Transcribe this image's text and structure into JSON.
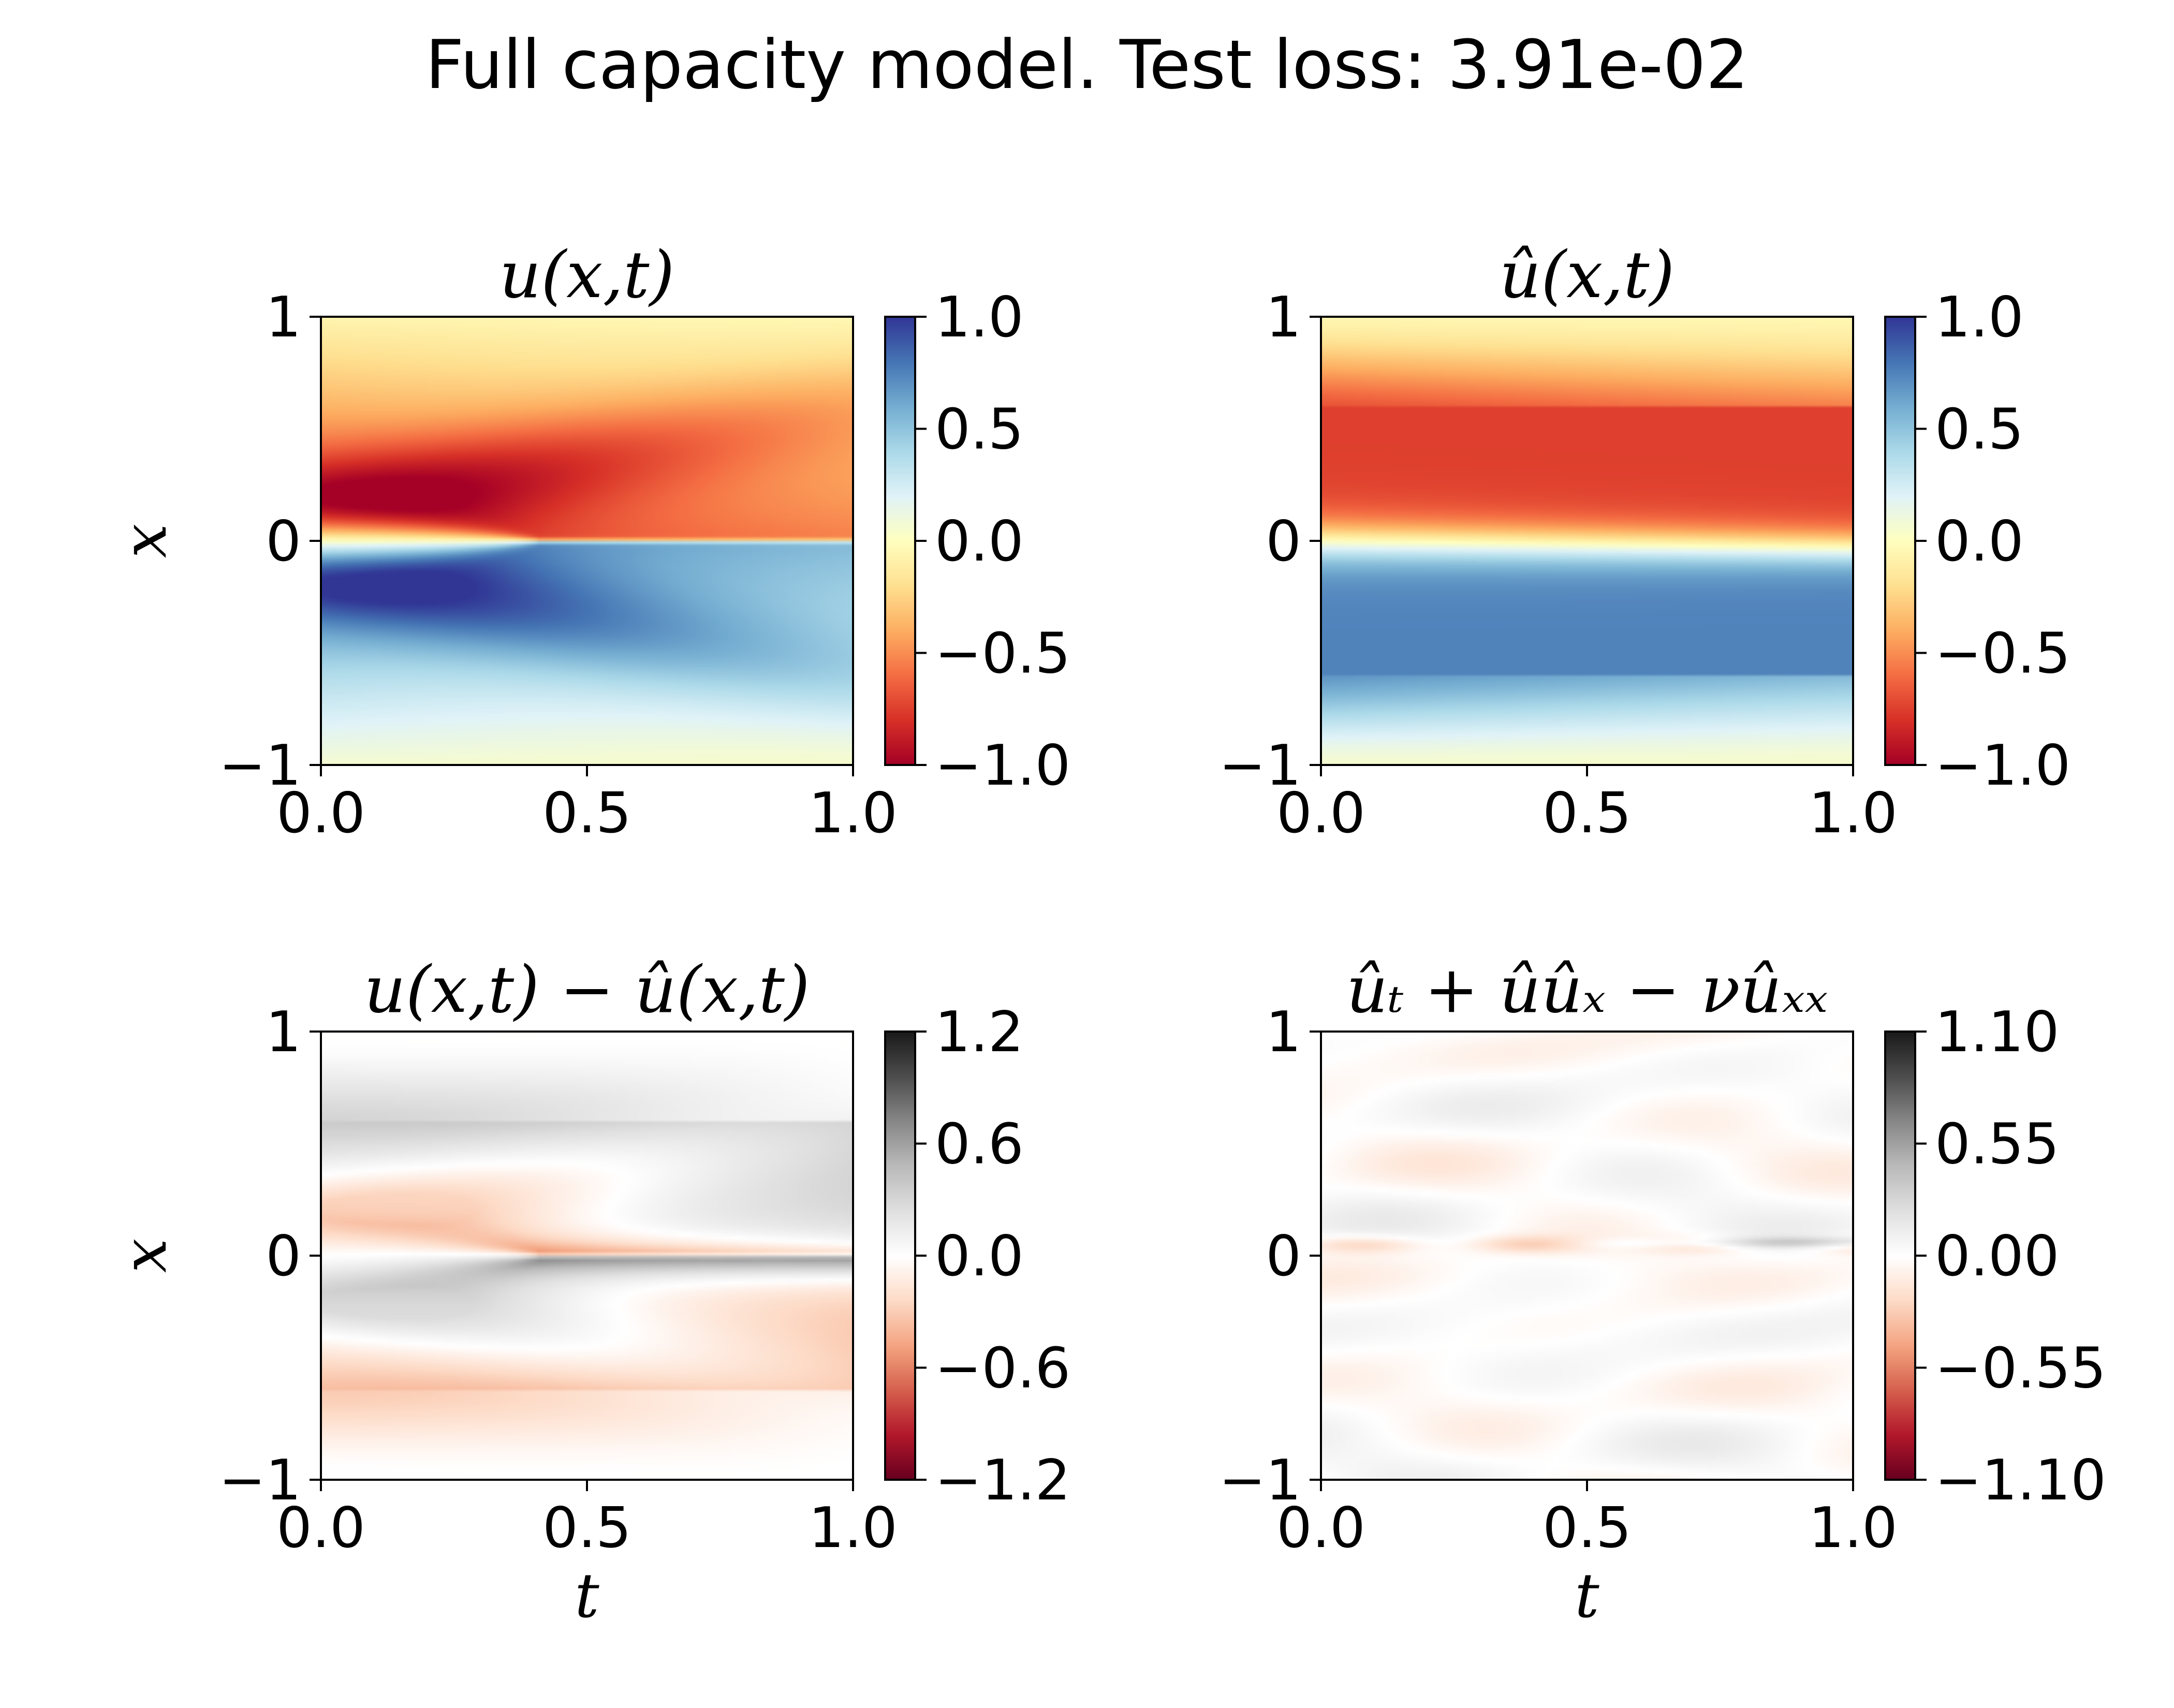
{
  "figure": {
    "suptitle": "Full capacity model. Test loss: 3.91e-02"
  },
  "colors": {
    "RdYlBu": [
      "#a50026",
      "#d73027",
      "#f46d43",
      "#fdae61",
      "#fee090",
      "#ffffbf",
      "#e0f3f8",
      "#abd9e9",
      "#74add1",
      "#4575b4",
      "#313695"
    ],
    "RdGy": [
      "#67001f",
      "#b2182b",
      "#d6604d",
      "#f4a582",
      "#fddbc7",
      "#ffffff",
      "#e0e0e0",
      "#bababa",
      "#878787",
      "#4d4d4d",
      "#1a1a1a"
    ],
    "axis": "#000000",
    "background": "#ffffff"
  },
  "chart_data": [
    {
      "type": "heatmap",
      "title": "u(x,t)",
      "xlabel": "",
      "ylabel": "x",
      "xlim": [
        0.0,
        1.0
      ],
      "ylim": [
        -1,
        1
      ],
      "xticks": [
        "0.0",
        "0.5",
        "1.0"
      ],
      "yticks": [
        "−1",
        "0",
        "1"
      ],
      "colormap": "RdYlBu",
      "vmin": -1.0,
      "vmax": 1.0,
      "cbar_ticks": [
        "1.0",
        "0.5",
        "0.0",
        "−0.5",
        "−1.0"
      ],
      "field": "burgers_true"
    },
    {
      "type": "heatmap",
      "title": "û(x,t)",
      "xlabel": "",
      "ylabel": "",
      "xlim": [
        0.0,
        1.0
      ],
      "ylim": [
        -1,
        1
      ],
      "xticks": [
        "0.0",
        "0.5",
        "1.0"
      ],
      "yticks": [
        "−1",
        "0",
        "1"
      ],
      "colormap": "RdYlBu",
      "vmin": -1.0,
      "vmax": 1.0,
      "cbar_ticks": [
        "1.0",
        "0.5",
        "0.0",
        "−0.5",
        "−1.0"
      ],
      "field": "burgers_pred"
    },
    {
      "type": "heatmap",
      "title": "u(x,t) − û(x,t)",
      "xlabel": "t",
      "ylabel": "x",
      "xlim": [
        0.0,
        1.0
      ],
      "ylim": [
        -1,
        1
      ],
      "xticks": [
        "0.0",
        "0.5",
        "1.0"
      ],
      "yticks": [
        "−1",
        "0",
        "1"
      ],
      "colormap": "RdGy",
      "vmin": -1.2,
      "vmax": 1.2,
      "cbar_ticks": [
        "1.2",
        "0.6",
        "0.0",
        "−0.6",
        "−1.2"
      ],
      "field": "burgers_error"
    },
    {
      "type": "heatmap",
      "title": "ûₜ + ûûₓ − νûₓₓ",
      "xlabel": "t",
      "ylabel": "",
      "xlim": [
        0.0,
        1.0
      ],
      "ylim": [
        -1,
        1
      ],
      "xticks": [
        "0.0",
        "0.5",
        "1.0"
      ],
      "yticks": [
        "−1",
        "0",
        "1"
      ],
      "colormap": "RdGy",
      "vmin": -1.1,
      "vmax": 1.1,
      "cbar_ticks": [
        "1.10",
        "0.55",
        "0.00",
        "−0.55",
        "−1.10"
      ],
      "field": "burgers_residual"
    }
  ]
}
